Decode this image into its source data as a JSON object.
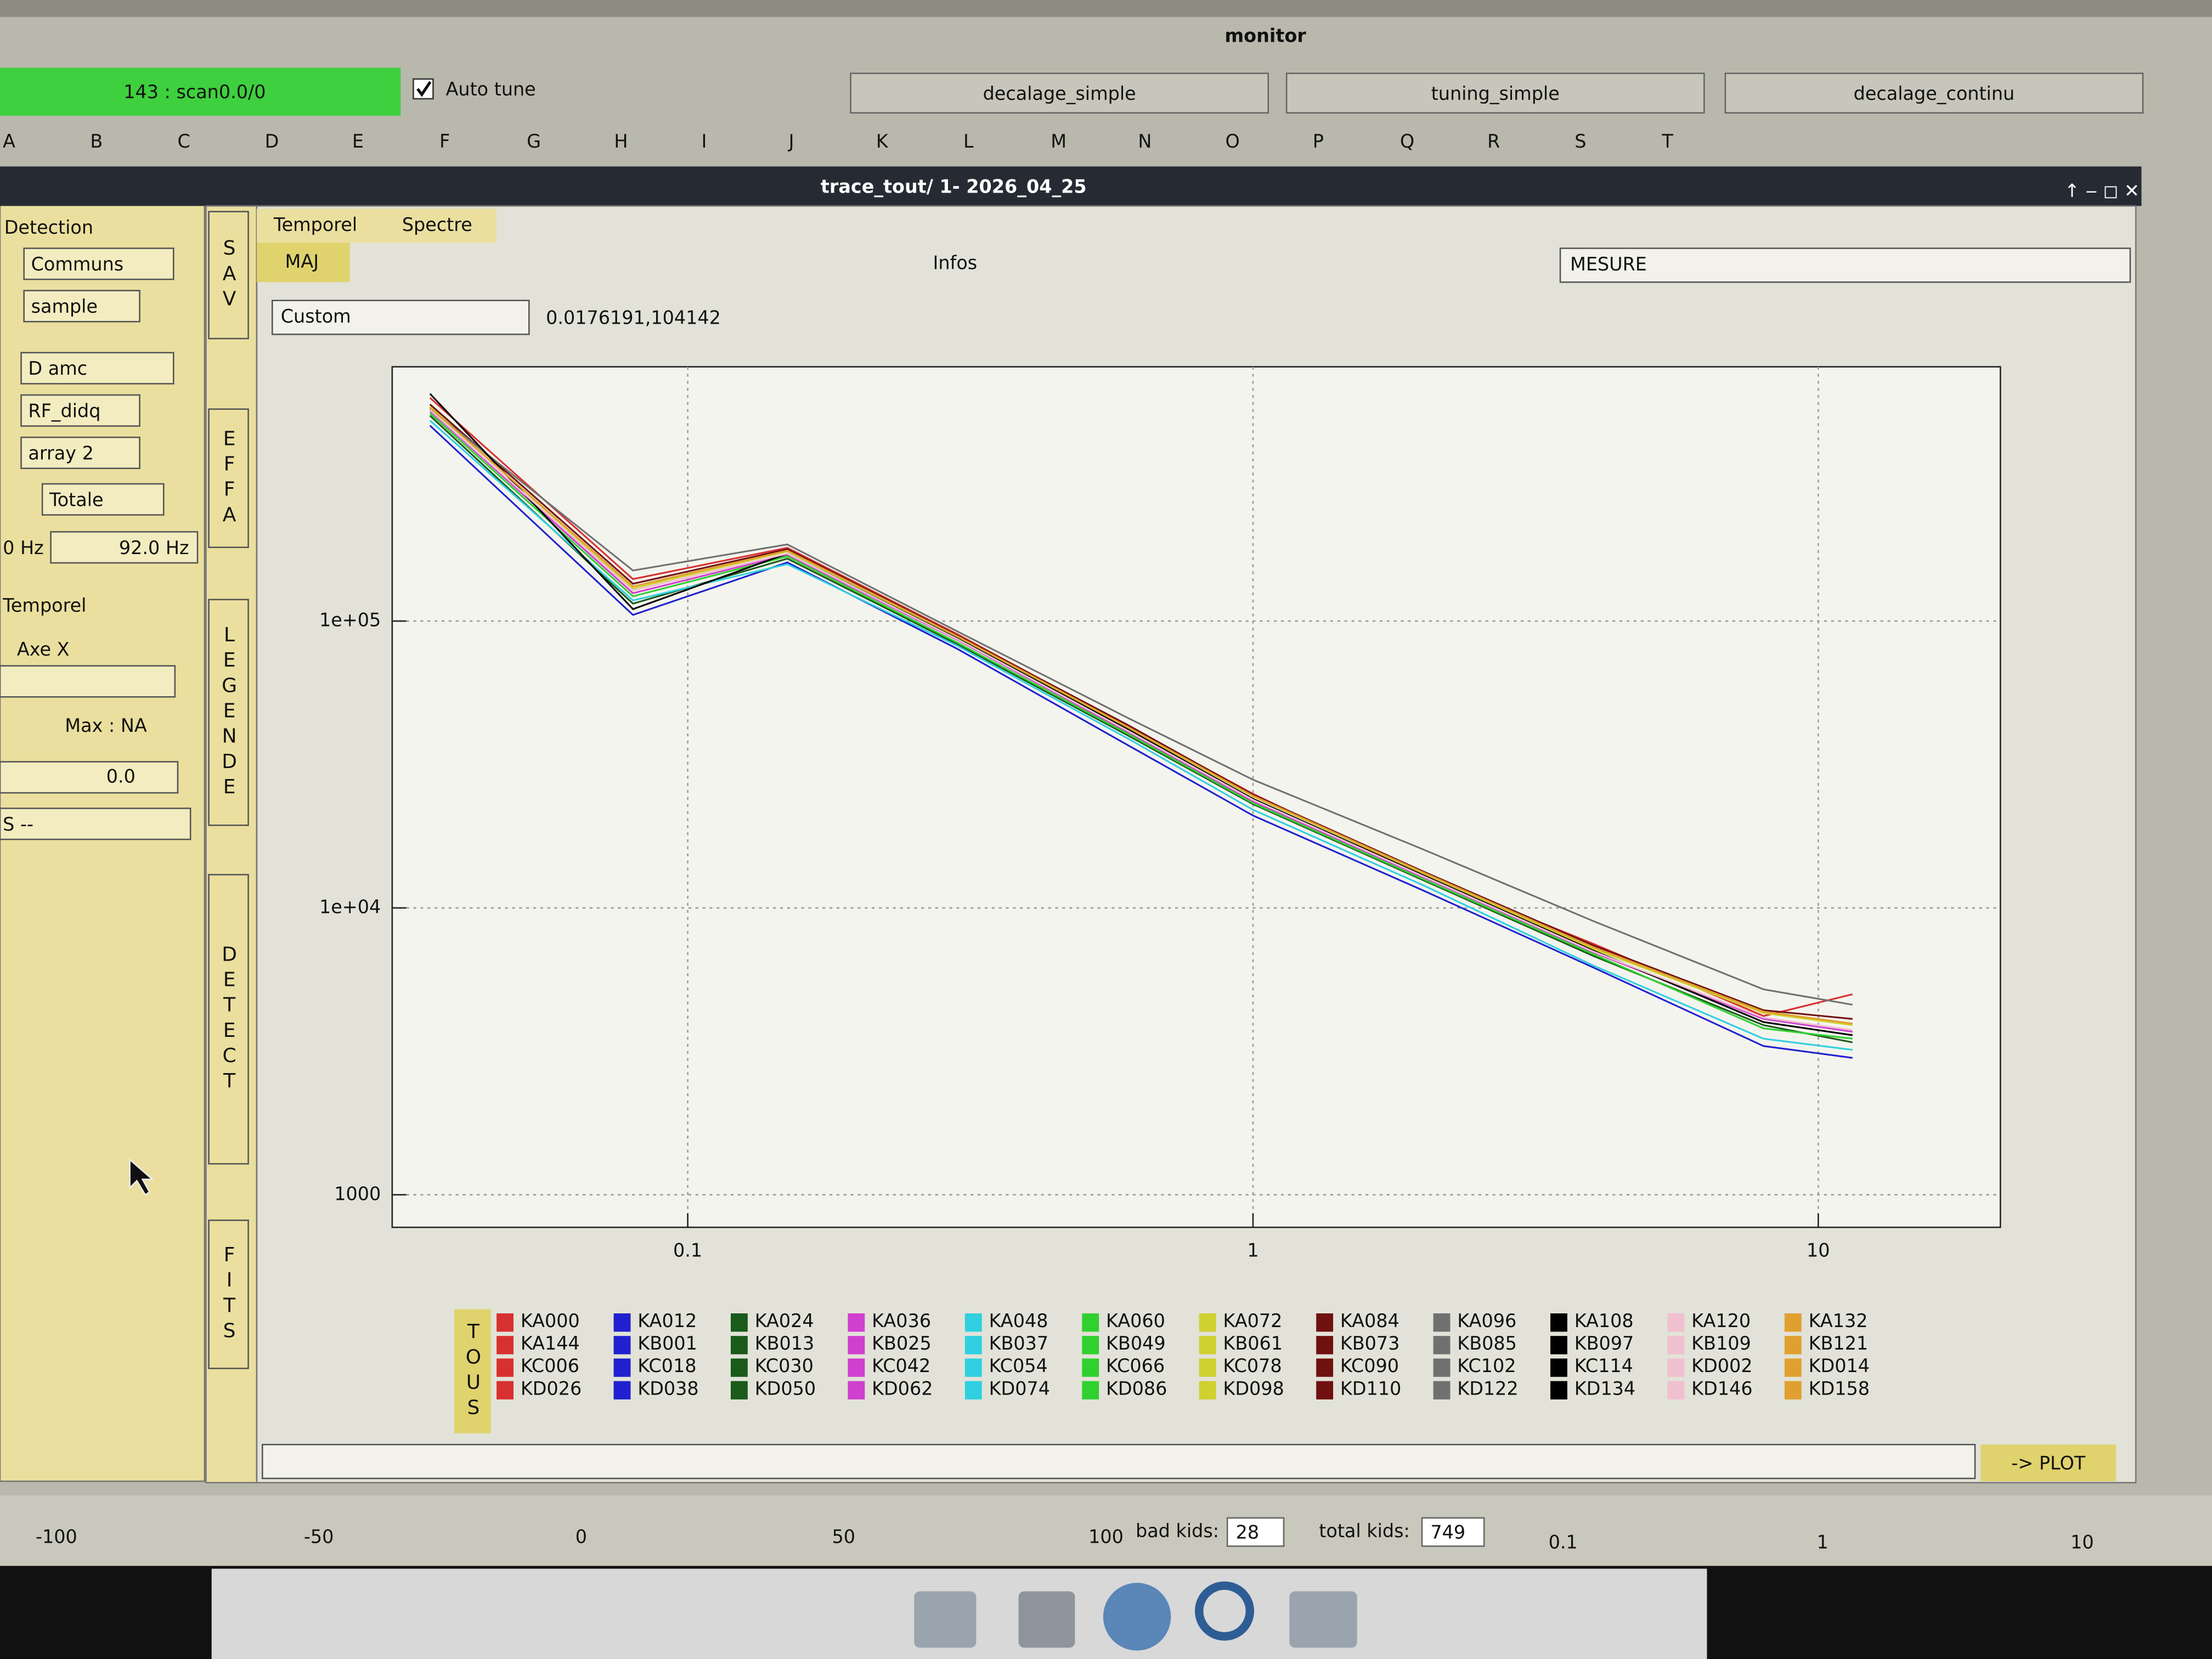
{
  "top": {
    "title": "monitor",
    "status": "143 : scan0.0/0",
    "auto_tune": "Auto tune",
    "buttons": [
      "decalage_simple",
      "tuning_simple",
      "decalage_continu"
    ],
    "columns": [
      "A",
      "B",
      "C",
      "D",
      "E",
      "F",
      "G",
      "H",
      "I",
      "J",
      "K",
      "L",
      "M",
      "N",
      "O",
      "P",
      "Q",
      "R",
      "S",
      "T"
    ]
  },
  "window": {
    "title": "trace_tout/ 1- 2026_04_25",
    "tabs": [
      "Temporel",
      "Spectre"
    ],
    "side_tabs": [
      "SAV",
      "EFFA",
      "LEGENDE",
      "DETECT",
      "FITS"
    ],
    "maj": "MAJ",
    "infos": "Infos",
    "mesure": "MESURE",
    "custom": "Custom",
    "coords": "0.0176191,104142",
    "tous": "TOUS",
    "plot": "-> PLOT"
  },
  "left_panel": {
    "title": "Detection",
    "communs": "Communs",
    "sample": "sample",
    "d_amc": "D amc",
    "rf": "RF_didq",
    "array": "array 2",
    "totale": "Totale",
    "f_min": "0 Hz",
    "f_max": "92.0 Hz",
    "temporel": "Temporel",
    "axe_x": "Axe X",
    "max": "Max : NA",
    "value": "0.0",
    "s": "S --"
  },
  "bottom": {
    "bad_kids_label": "bad kids:",
    "bad_kids": 28,
    "total_kids_label": "total kids:",
    "total_kids": 749,
    "axis_left": [
      -100,
      -50,
      0,
      50,
      100
    ],
    "axis_right": [
      0.1,
      1,
      10
    ]
  },
  "chart_data": {
    "type": "line",
    "log_x": true,
    "log_y": true,
    "grid": true,
    "xlim": [
      0.03,
      21
    ],
    "ylim": [
      770,
      770000
    ],
    "xticks": [
      0.1,
      1,
      10
    ],
    "yticks": [
      1000,
      {
        "value": 10000,
        "label": "1e+04"
      },
      {
        "value": 100000,
        "label": "1e+05"
      }
    ],
    "x": [
      0.035,
      0.08,
      0.15,
      0.3,
      0.6,
      1,
      2,
      4,
      8,
      11.5
    ],
    "series": [
      {
        "names": [
          "KA000",
          "KA144",
          "KC006",
          "KD026"
        ],
        "color": "#d83030",
        "values": [
          600000,
          140000,
          180000,
          90000,
          43000,
          25000,
          13000,
          7500,
          4200,
          5000
        ]
      },
      {
        "names": [
          "KA012",
          "KB001",
          "KC018",
          "KD038"
        ],
        "color": "#2020d0",
        "values": [
          480000,
          105000,
          160000,
          80000,
          37000,
          21000,
          11500,
          6200,
          3300,
          3000
        ]
      },
      {
        "names": [
          "KA024",
          "KB013",
          "KC030",
          "KD050"
        ],
        "color": "#1a5a1a",
        "values": [
          520000,
          115000,
          165000,
          83000,
          40000,
          23000,
          12500,
          6800,
          3900,
          3400
        ]
      },
      {
        "names": [
          "KA036",
          "KB025",
          "KC042",
          "KD062"
        ],
        "color": "#d040d0",
        "values": [
          540000,
          125000,
          170000,
          86000,
          41000,
          23500,
          12800,
          7000,
          4100,
          3700
        ]
      },
      {
        "names": [
          "KA048",
          "KB037",
          "KC054",
          "KD074"
        ],
        "color": "#30d0e0",
        "values": [
          500000,
          118000,
          158000,
          82000,
          39000,
          22000,
          12000,
          6300,
          3500,
          3200
        ]
      },
      {
        "names": [
          "KA060",
          "KB049",
          "KC066",
          "KD086"
        ],
        "color": "#30d030",
        "values": [
          530000,
          122000,
          168000,
          84000,
          40500,
          23200,
          12600,
          6900,
          3800,
          3500
        ]
      },
      {
        "names": [
          "KA072",
          "KB061",
          "KC078",
          "KD098"
        ],
        "color": "#d0d030",
        "values": [
          560000,
          130000,
          175000,
          88000,
          42500,
          24500,
          13200,
          7200,
          4300,
          3900
        ]
      },
      {
        "names": [
          "KA084",
          "KB073",
          "KC090",
          "KD110"
        ],
        "color": "#701010",
        "values": [
          570000,
          135000,
          178000,
          89000,
          43500,
          24800,
          13400,
          7400,
          4400,
          4100
        ]
      },
      {
        "names": [
          "KA096",
          "KB085",
          "KC102",
          "KD122"
        ],
        "color": "#707070",
        "values": [
          550000,
          150000,
          185000,
          92000,
          46000,
          28000,
          16000,
          9000,
          5200,
          4600
        ]
      },
      {
        "names": [
          "KA108",
          "KB097",
          "KC114",
          "KD134"
        ],
        "color": "#000000",
        "values": [
          620000,
          110000,
          172000,
          87000,
          42000,
          24000,
          13000,
          7100,
          4000,
          3600
        ]
      },
      {
        "names": [
          "KA120",
          "KB109",
          "KD002",
          "KD146"
        ],
        "color": "#f0c0d0",
        "values": [
          545000,
          128000,
          172000,
          86500,
          41500,
          23800,
          12900,
          7050,
          4150,
          3750
        ]
      },
      {
        "names": [
          "KA132",
          "KB121",
          "KD014",
          "KD158"
        ],
        "color": "#e0a030",
        "values": [
          555000,
          132000,
          176000,
          88500,
          42800,
          24600,
          13300,
          7300,
          4350,
          3950
        ]
      }
    ]
  }
}
